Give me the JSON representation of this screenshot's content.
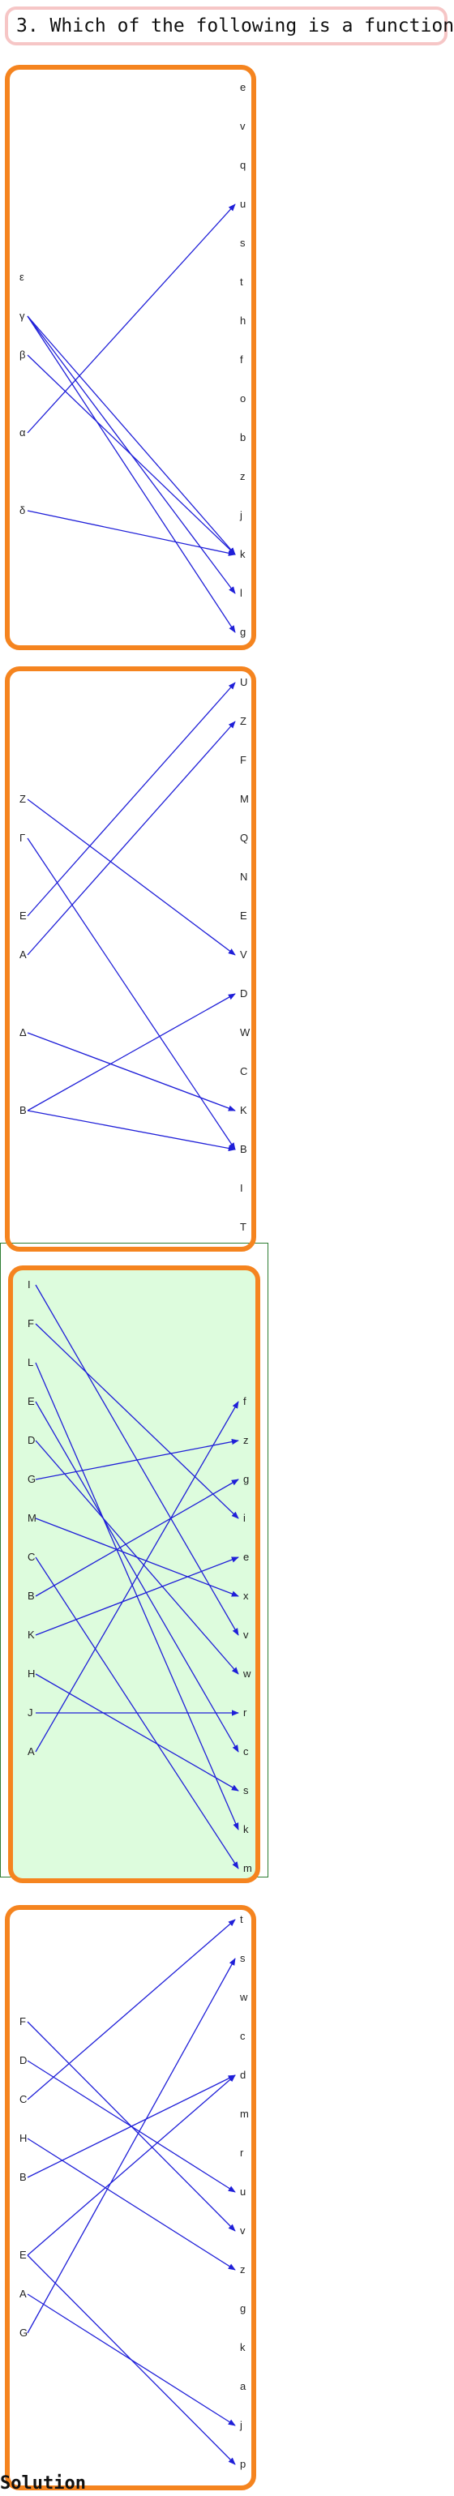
{
  "question": "3. Which of the following is a function:",
  "options": [
    {
      "id": "option-1",
      "selected": false,
      "domain": [
        "ε",
        "γ",
        "β",
        "α",
        "δ"
      ],
      "codomain": [
        "e",
        "v",
        "q",
        "u",
        "s",
        "t",
        "h",
        "f",
        "o",
        "b",
        "z",
        "j",
        "k",
        "l",
        "g"
      ],
      "arrows": [
        [
          "γ",
          "k"
        ],
        [
          "γ",
          "l"
        ],
        [
          "γ",
          "g"
        ],
        [
          "β",
          "k"
        ],
        [
          "α",
          "u"
        ],
        [
          "δ",
          "k"
        ]
      ]
    },
    {
      "id": "option-2",
      "selected": false,
      "domain": [
        "Z",
        "Γ",
        "E",
        "A",
        "Δ",
        "B"
      ],
      "codomain": [
        "U",
        "Z",
        "F",
        "M",
        "Q",
        "N",
        "E",
        "V",
        "D",
        "W",
        "C",
        "K",
        "B",
        "I",
        "T"
      ],
      "arrows": [
        [
          "Z",
          "V"
        ],
        [
          "Γ",
          "B"
        ],
        [
          "E",
          "U"
        ],
        [
          "A",
          "Z"
        ],
        [
          "Δ",
          "K"
        ],
        [
          "B",
          "D"
        ],
        [
          "B",
          "B"
        ]
      ]
    },
    {
      "id": "option-3",
      "selected": true,
      "domain": [
        "I",
        "F",
        "L",
        "E",
        "D",
        "G",
        "M",
        "C",
        "B",
        "K",
        "H",
        "J",
        "A"
      ],
      "codomain": [
        "f",
        "z",
        "g",
        "i",
        "e",
        "x",
        "v",
        "w",
        "r",
        "c",
        "s",
        "k",
        "m"
      ],
      "arrows": [
        [
          "I",
          "v"
        ],
        [
          "F",
          "i"
        ],
        [
          "L",
          "k"
        ],
        [
          "E",
          "c"
        ],
        [
          "D",
          "w"
        ],
        [
          "G",
          "z"
        ],
        [
          "M",
          "x"
        ],
        [
          "C",
          "m"
        ],
        [
          "B",
          "g"
        ],
        [
          "K",
          "e"
        ],
        [
          "H",
          "s"
        ],
        [
          "J",
          "r"
        ],
        [
          "A",
          "f"
        ]
      ]
    },
    {
      "id": "option-4",
      "selected": false,
      "domain": [
        "F",
        "D",
        "C",
        "H",
        "B",
        "E",
        "A",
        "G"
      ],
      "codomain": [
        "t",
        "s",
        "w",
        "c",
        "d",
        "m",
        "r",
        "u",
        "v",
        "z",
        "g",
        "k",
        "a",
        "j",
        "p"
      ],
      "arrows": [
        [
          "F",
          "v"
        ],
        [
          "D",
          "u"
        ],
        [
          "C",
          "t"
        ],
        [
          "H",
          "z"
        ],
        [
          "B",
          "d"
        ],
        [
          "E",
          "d"
        ],
        [
          "E",
          "p"
        ],
        [
          "A",
          "j"
        ],
        [
          "G",
          "s"
        ]
      ]
    }
  ],
  "solution_label": "Solution",
  "colors": {
    "border": "#f5841f",
    "arrow": "#1f1fd8",
    "selected_fill": "#ddfcdd",
    "selected_frame": "#2e7d32",
    "question_border": "#f6c6c6"
  }
}
